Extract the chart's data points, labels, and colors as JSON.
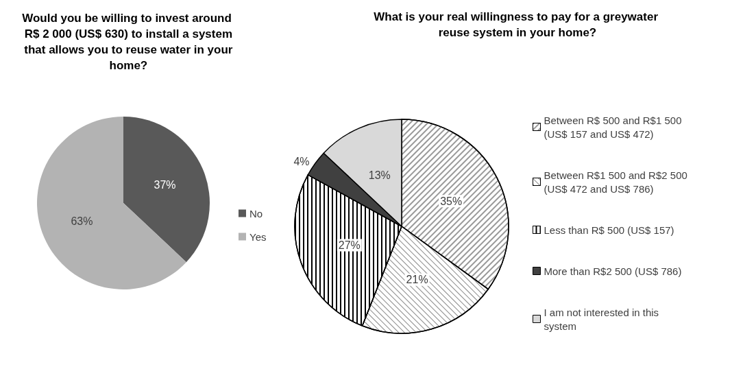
{
  "chart_data": [
    {
      "type": "pie",
      "title": "Would you be willing to invest around R$ 2 000 (US$ 630) to install a system that allows you to reuse water in your home?",
      "categories": [
        "No",
        "Yes"
      ],
      "values": [
        37,
        63
      ],
      "value_labels": [
        "37%",
        "63%"
      ],
      "colors": [
        "#595959",
        "#b3b3b3"
      ],
      "legend": "right"
    },
    {
      "type": "pie",
      "title": "What is your real willingness to pay for a greywater reuse system in your home?",
      "categories": [
        "Between R$ 500 and R$1 500 (US$ 157 and US$ 472)",
        "Between R$1 500 and R$2 500 (US$ 472 and US$ 786)",
        "Less than R$ 500 (US$ 157)",
        "More than R$2 500 (US$ 786)",
        "I am not interested in this system"
      ],
      "values": [
        35,
        21,
        27,
        4,
        13
      ],
      "value_labels": [
        "35%",
        "21%",
        "27%",
        "4%",
        "13%"
      ],
      "colors": [
        "#ffffff",
        "#ffffff",
        "#ffffff",
        "#404040",
        "#d9d9d9"
      ],
      "legend": "right"
    }
  ]
}
